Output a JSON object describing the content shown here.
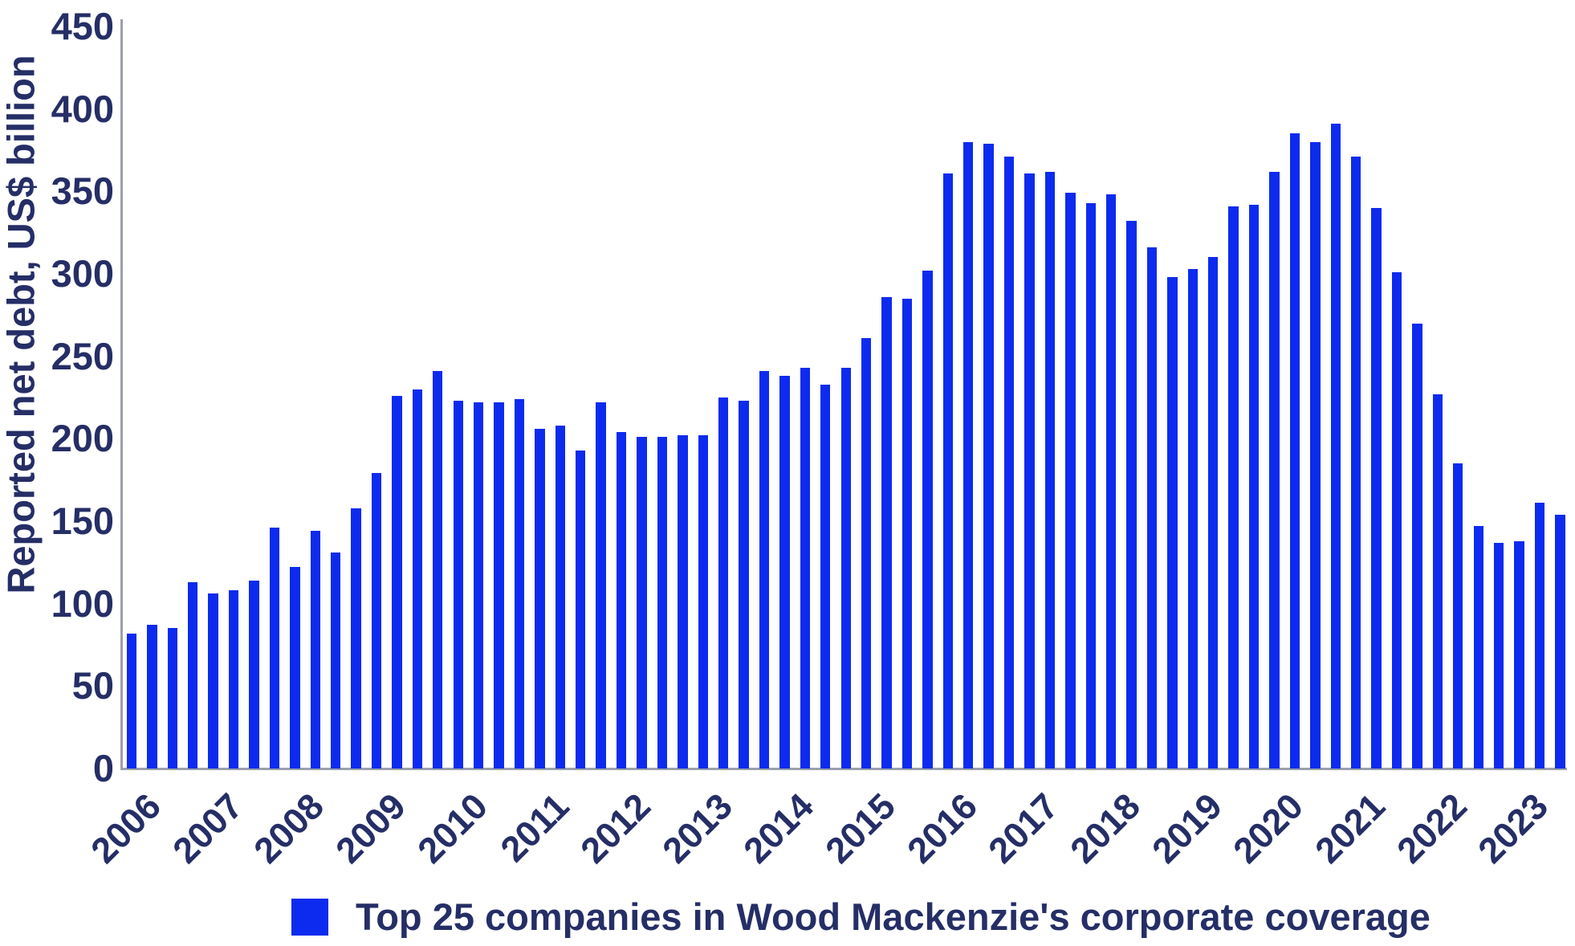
{
  "chart_data": {
    "type": "bar",
    "title": "",
    "xlabel": "",
    "ylabel": "Reported net debt, US$ billion",
    "ylim": [
      0,
      450
    ],
    "yticks": [
      0,
      50,
      100,
      150,
      200,
      250,
      300,
      350,
      400,
      450
    ],
    "grid": "off",
    "legend_position": "bottom",
    "legend_label": "Top 25 companies in Wood Mackenzie's corporate coverage",
    "categories_years": [
      "2006",
      "2007",
      "2008",
      "2009",
      "2010",
      "2011",
      "2012",
      "2013",
      "2014",
      "2015",
      "2016",
      "2017",
      "2018",
      "2019",
      "2020",
      "2021",
      "2022",
      "2023"
    ],
    "bars_per_year": [
      4,
      4,
      4,
      4,
      4,
      4,
      4,
      4,
      4,
      4,
      4,
      4,
      4,
      4,
      4,
      4,
      4,
      3
    ],
    "series": [
      {
        "name": "Top 25 companies in Wood Mackenzie's corporate coverage",
        "frequency": "quarterly",
        "values": [
          82,
          87,
          85,
          113,
          106,
          108,
          114,
          146,
          122,
          144,
          131,
          158,
          179,
          226,
          230,
          241,
          223,
          222,
          222,
          224,
          206,
          208,
          193,
          222,
          204,
          201,
          201,
          202,
          202,
          225,
          223,
          241,
          238,
          243,
          233,
          243,
          261,
          286,
          285,
          302,
          361,
          380,
          379,
          371,
          361,
          362,
          349,
          343,
          348,
          332,
          316,
          298,
          303,
          310,
          341,
          342,
          362,
          385,
          380,
          391,
          371,
          340,
          301,
          270,
          227,
          185,
          147,
          137,
          138,
          161,
          154
        ]
      }
    ]
  },
  "colors": {
    "bar": "#0d2bee",
    "text": "#252e66",
    "axis": "#9aa0ab",
    "background": "#ffffff"
  }
}
